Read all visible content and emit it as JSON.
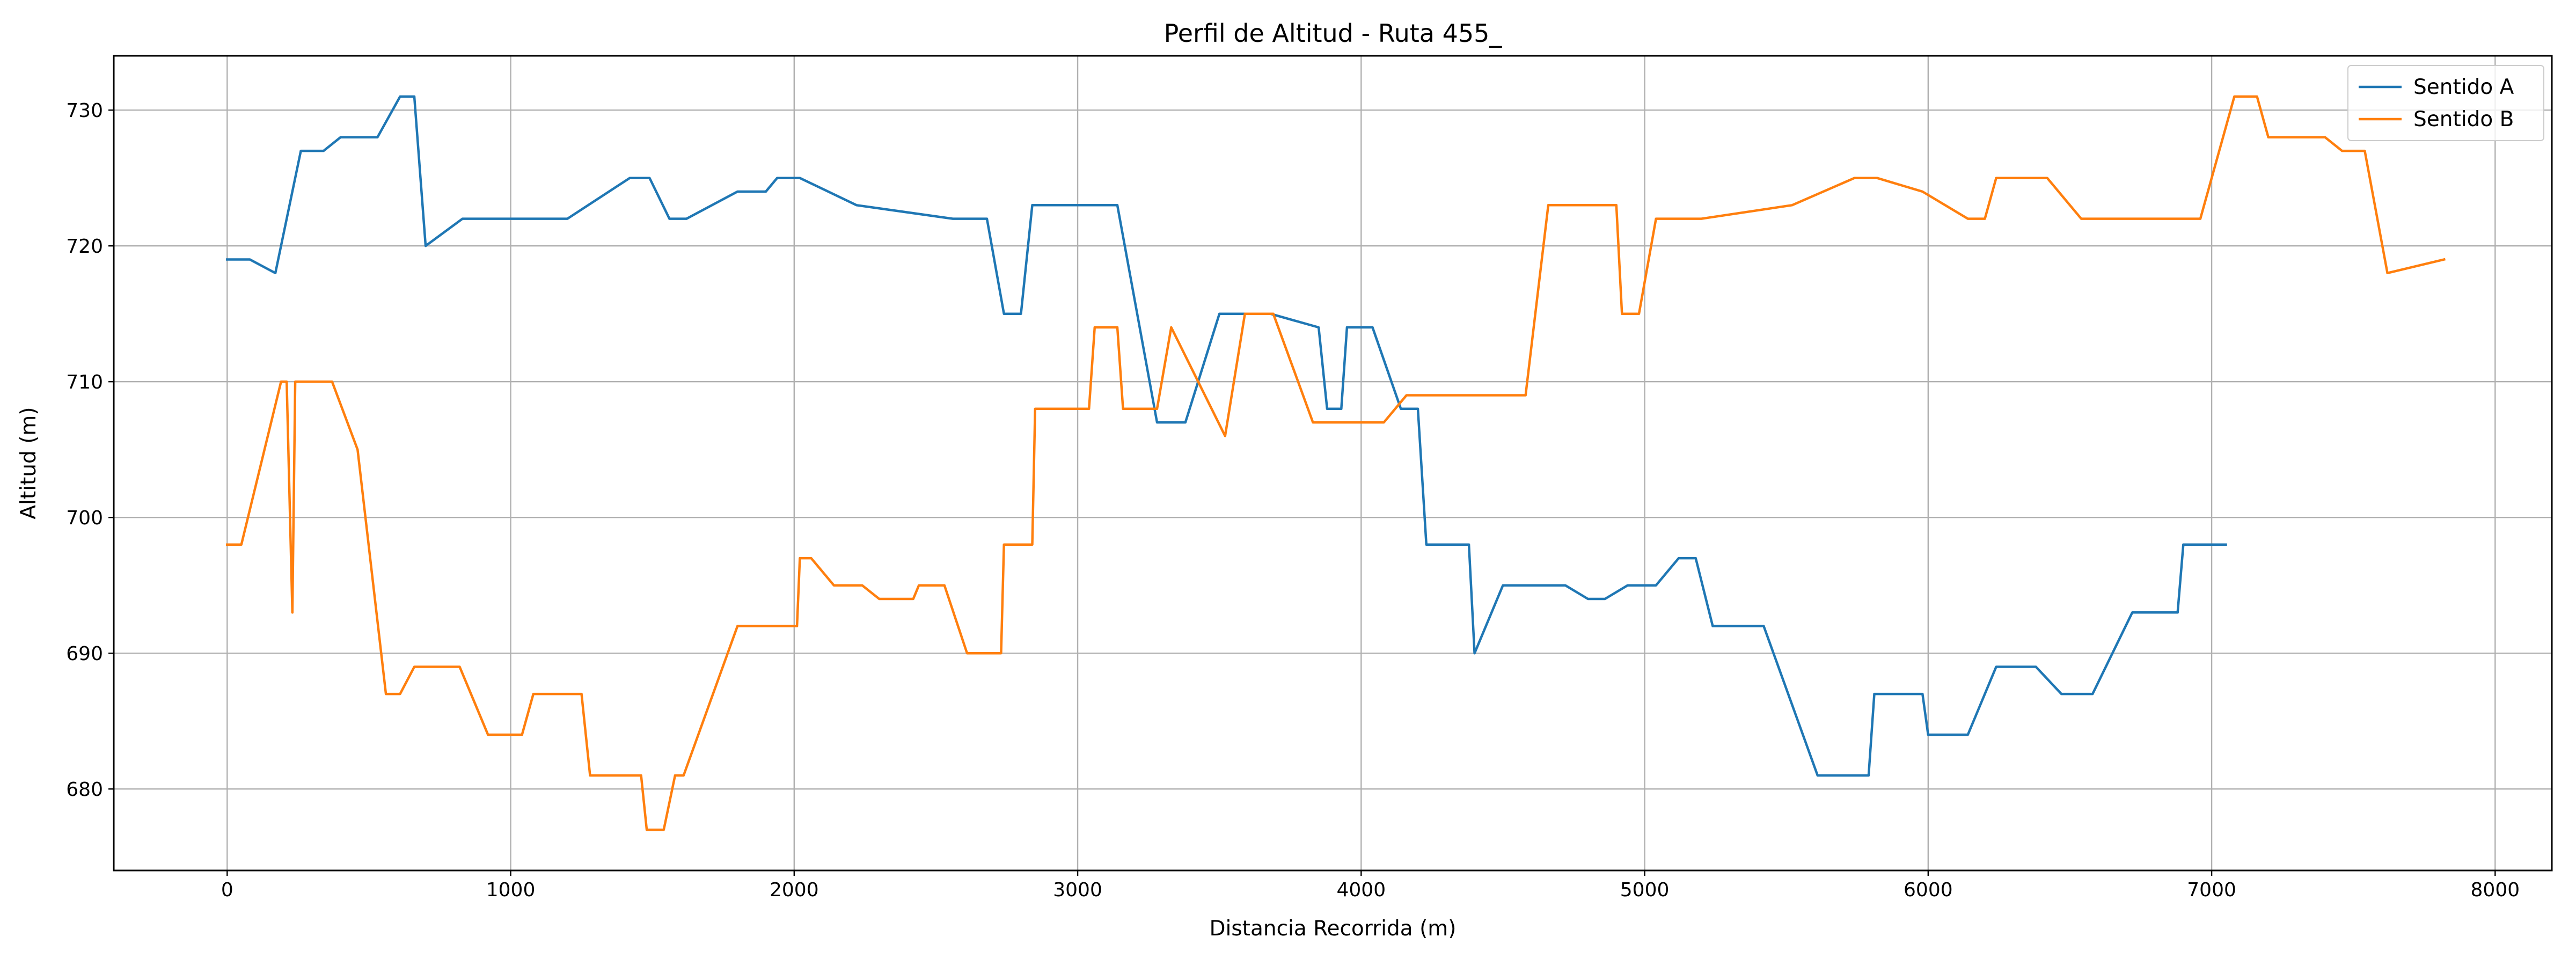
{
  "chart_data": {
    "type": "line",
    "title": "Perfil de Altitud - Ruta 455_",
    "xlabel": "Distancia Recorrida (m)",
    "ylabel": "Altitud (m)",
    "xlim": [
      -400,
      8200
    ],
    "ylim": [
      674,
      734
    ],
    "xticks": [
      0,
      1000,
      2000,
      3000,
      4000,
      5000,
      6000,
      7000,
      8000
    ],
    "yticks": [
      680,
      690,
      700,
      710,
      720,
      730
    ],
    "grid": true,
    "legend_position": "top-right",
    "series": [
      {
        "name": "Sentido A",
        "color": "#1f77b4",
        "x": [
          0,
          80,
          170,
          260,
          340,
          400,
          530,
          610,
          660,
          700,
          830,
          1000,
          1200,
          1420,
          1490,
          1560,
          1620,
          1800,
          1900,
          1940,
          2020,
          2220,
          2560,
          2680,
          2740,
          2800,
          2840,
          3000,
          3140,
          3280,
          3380,
          3500,
          3580,
          3680,
          3850,
          3880,
          3930,
          3950,
          4040,
          4140,
          4200,
          4230,
          4380,
          4400,
          4500,
          4600,
          4720,
          4800,
          4860,
          4940,
          5040,
          5120,
          5180,
          5240,
          5420,
          5610,
          5790,
          5810,
          5980,
          6000,
          6140,
          6240,
          6380,
          6470,
          6580,
          6720,
          6880,
          6900,
          7050
        ],
        "values": [
          719,
          719,
          718,
          727,
          727,
          728,
          728,
          731,
          731,
          720,
          722,
          722,
          722,
          725,
          725,
          722,
          722,
          724,
          724,
          725,
          725,
          723,
          722,
          722,
          715,
          715,
          723,
          723,
          723,
          707,
          707,
          715,
          715,
          715,
          714,
          708,
          708,
          714,
          714,
          708,
          708,
          698,
          698,
          690,
          695,
          695,
          695,
          694,
          694,
          695,
          695,
          697,
          697,
          692,
          692,
          681,
          681,
          687,
          687,
          684,
          684,
          689,
          689,
          687,
          687,
          693,
          693,
          698,
          698
        ]
      },
      {
        "name": "Sentido B",
        "color": "#ff7f0e",
        "x": [
          0,
          50,
          190,
          210,
          230,
          240,
          370,
          460,
          560,
          610,
          660,
          820,
          920,
          1040,
          1080,
          1250,
          1280,
          1460,
          1480,
          1540,
          1580,
          1610,
          1800,
          2010,
          2020,
          2060,
          2140,
          2240,
          2300,
          2420,
          2440,
          2530,
          2610,
          2730,
          2740,
          2840,
          2850,
          3040,
          3060,
          3140,
          3160,
          3280,
          3330,
          3520,
          3590,
          3690,
          3830,
          3920,
          4040,
          4080,
          4160,
          4580,
          4660,
          4700,
          4900,
          4920,
          4980,
          5040,
          5100,
          5200,
          5520,
          5740,
          5820,
          5980,
          6140,
          6200,
          6240,
          6300,
          6420,
          6540,
          6600,
          6940,
          6960,
          7080,
          7120,
          7160,
          7200,
          7340,
          7400,
          7460,
          7500,
          7540,
          7620,
          7820
        ],
        "values": [
          698,
          698,
          710,
          710,
          693,
          710,
          710,
          705,
          687,
          687,
          689,
          689,
          684,
          684,
          687,
          687,
          681,
          681,
          677,
          677,
          681,
          681,
          692,
          692,
          697,
          697,
          695,
          695,
          694,
          694,
          695,
          695,
          690,
          690,
          698,
          698,
          708,
          708,
          714,
          714,
          708,
          708,
          714,
          706,
          715,
          715,
          707,
          707,
          707,
          707,
          709,
          709,
          723,
          723,
          723,
          715,
          715,
          722,
          722,
          722,
          723,
          725,
          725,
          724,
          722,
          722,
          725,
          725,
          725,
          722,
          722,
          722,
          722,
          731,
          731,
          731,
          728,
          728,
          728,
          727,
          727,
          727,
          718,
          719
        ]
      }
    ]
  }
}
